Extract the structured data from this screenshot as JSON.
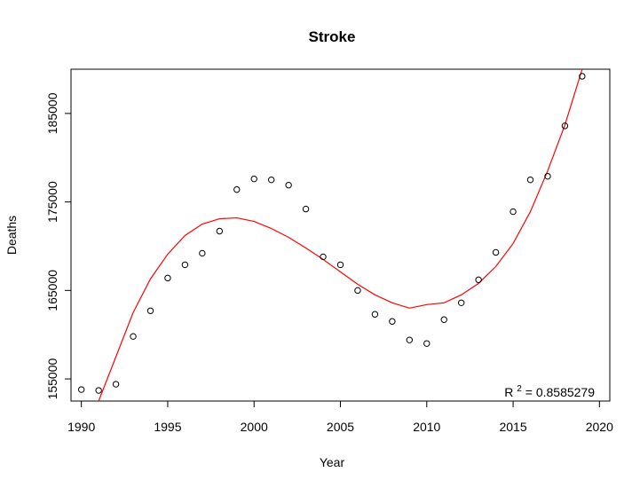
{
  "chart_data": {
    "type": "scatter",
    "title": "Stroke",
    "xlabel": "Year",
    "ylabel": "Deaths",
    "xlim": [
      1989.4,
      2020.6
    ],
    "ylim": [
      152500,
      190000
    ],
    "x_ticks": [
      1990,
      1995,
      2000,
      2005,
      2010,
      2015,
      2020
    ],
    "y_ticks": [
      155000,
      165000,
      175000,
      185000
    ],
    "grid": false,
    "annotation": {
      "base": "R",
      "superscript": "2",
      "rest": " = 0.8585279"
    },
    "points": [
      {
        "x": 1990,
        "y": 153800
      },
      {
        "x": 1991,
        "y": 153700
      },
      {
        "x": 1992,
        "y": 154400
      },
      {
        "x": 1993,
        "y": 159800
      },
      {
        "x": 1994,
        "y": 162700
      },
      {
        "x": 1995,
        "y": 166400
      },
      {
        "x": 1996,
        "y": 167900
      },
      {
        "x": 1997,
        "y": 169200
      },
      {
        "x": 1998,
        "y": 171700
      },
      {
        "x": 1999,
        "y": 176400
      },
      {
        "x": 2000,
        "y": 177600
      },
      {
        "x": 2001,
        "y": 177500
      },
      {
        "x": 2002,
        "y": 176900
      },
      {
        "x": 2003,
        "y": 174200
      },
      {
        "x": 2004,
        "y": 168800
      },
      {
        "x": 2005,
        "y": 167900
      },
      {
        "x": 2006,
        "y": 165000
      },
      {
        "x": 2007,
        "y": 162300
      },
      {
        "x": 2008,
        "y": 161500
      },
      {
        "x": 2009,
        "y": 159400
      },
      {
        "x": 2010,
        "y": 159000
      },
      {
        "x": 2011,
        "y": 161700
      },
      {
        "x": 2012,
        "y": 163600
      },
      {
        "x": 2013,
        "y": 166200
      },
      {
        "x": 2014,
        "y": 169300
      },
      {
        "x": 2015,
        "y": 173900
      },
      {
        "x": 2016,
        "y": 177500
      },
      {
        "x": 2017,
        "y": 177900
      },
      {
        "x": 2018,
        "y": 183600
      },
      {
        "x": 2019,
        "y": 189200
      }
    ],
    "fit": {
      "color": "#ff0000",
      "points": [
        {
          "x": 1991.0,
          "y": 152500
        },
        {
          "x": 1992.0,
          "y": 157500
        },
        {
          "x": 1993.0,
          "y": 162500
        },
        {
          "x": 1994.0,
          "y": 166300
        },
        {
          "x": 1995.0,
          "y": 169100
        },
        {
          "x": 1996.0,
          "y": 171200
        },
        {
          "x": 1997.0,
          "y": 172500
        },
        {
          "x": 1998.0,
          "y": 173100
        },
        {
          "x": 1999.0,
          "y": 173200
        },
        {
          "x": 2000.0,
          "y": 172800
        },
        {
          "x": 2001.0,
          "y": 172000
        },
        {
          "x": 2002.0,
          "y": 171000
        },
        {
          "x": 2003.0,
          "y": 169800
        },
        {
          "x": 2004.0,
          "y": 168500
        },
        {
          "x": 2005.0,
          "y": 167100
        },
        {
          "x": 2006.0,
          "y": 165700
        },
        {
          "x": 2007.0,
          "y": 164500
        },
        {
          "x": 2008.0,
          "y": 163600
        },
        {
          "x": 2009.0,
          "y": 163000
        },
        {
          "x": 2010.0,
          "y": 163400
        },
        {
          "x": 2011.0,
          "y": 163600
        },
        {
          "x": 2012.0,
          "y": 164500
        },
        {
          "x": 2013.0,
          "y": 165800
        },
        {
          "x": 2014.0,
          "y": 167700
        },
        {
          "x": 2015.0,
          "y": 170300
        },
        {
          "x": 2016.0,
          "y": 173900
        },
        {
          "x": 2017.0,
          "y": 178500
        },
        {
          "x": 2018.0,
          "y": 183700
        },
        {
          "x": 2019.0,
          "y": 190000
        }
      ]
    }
  }
}
